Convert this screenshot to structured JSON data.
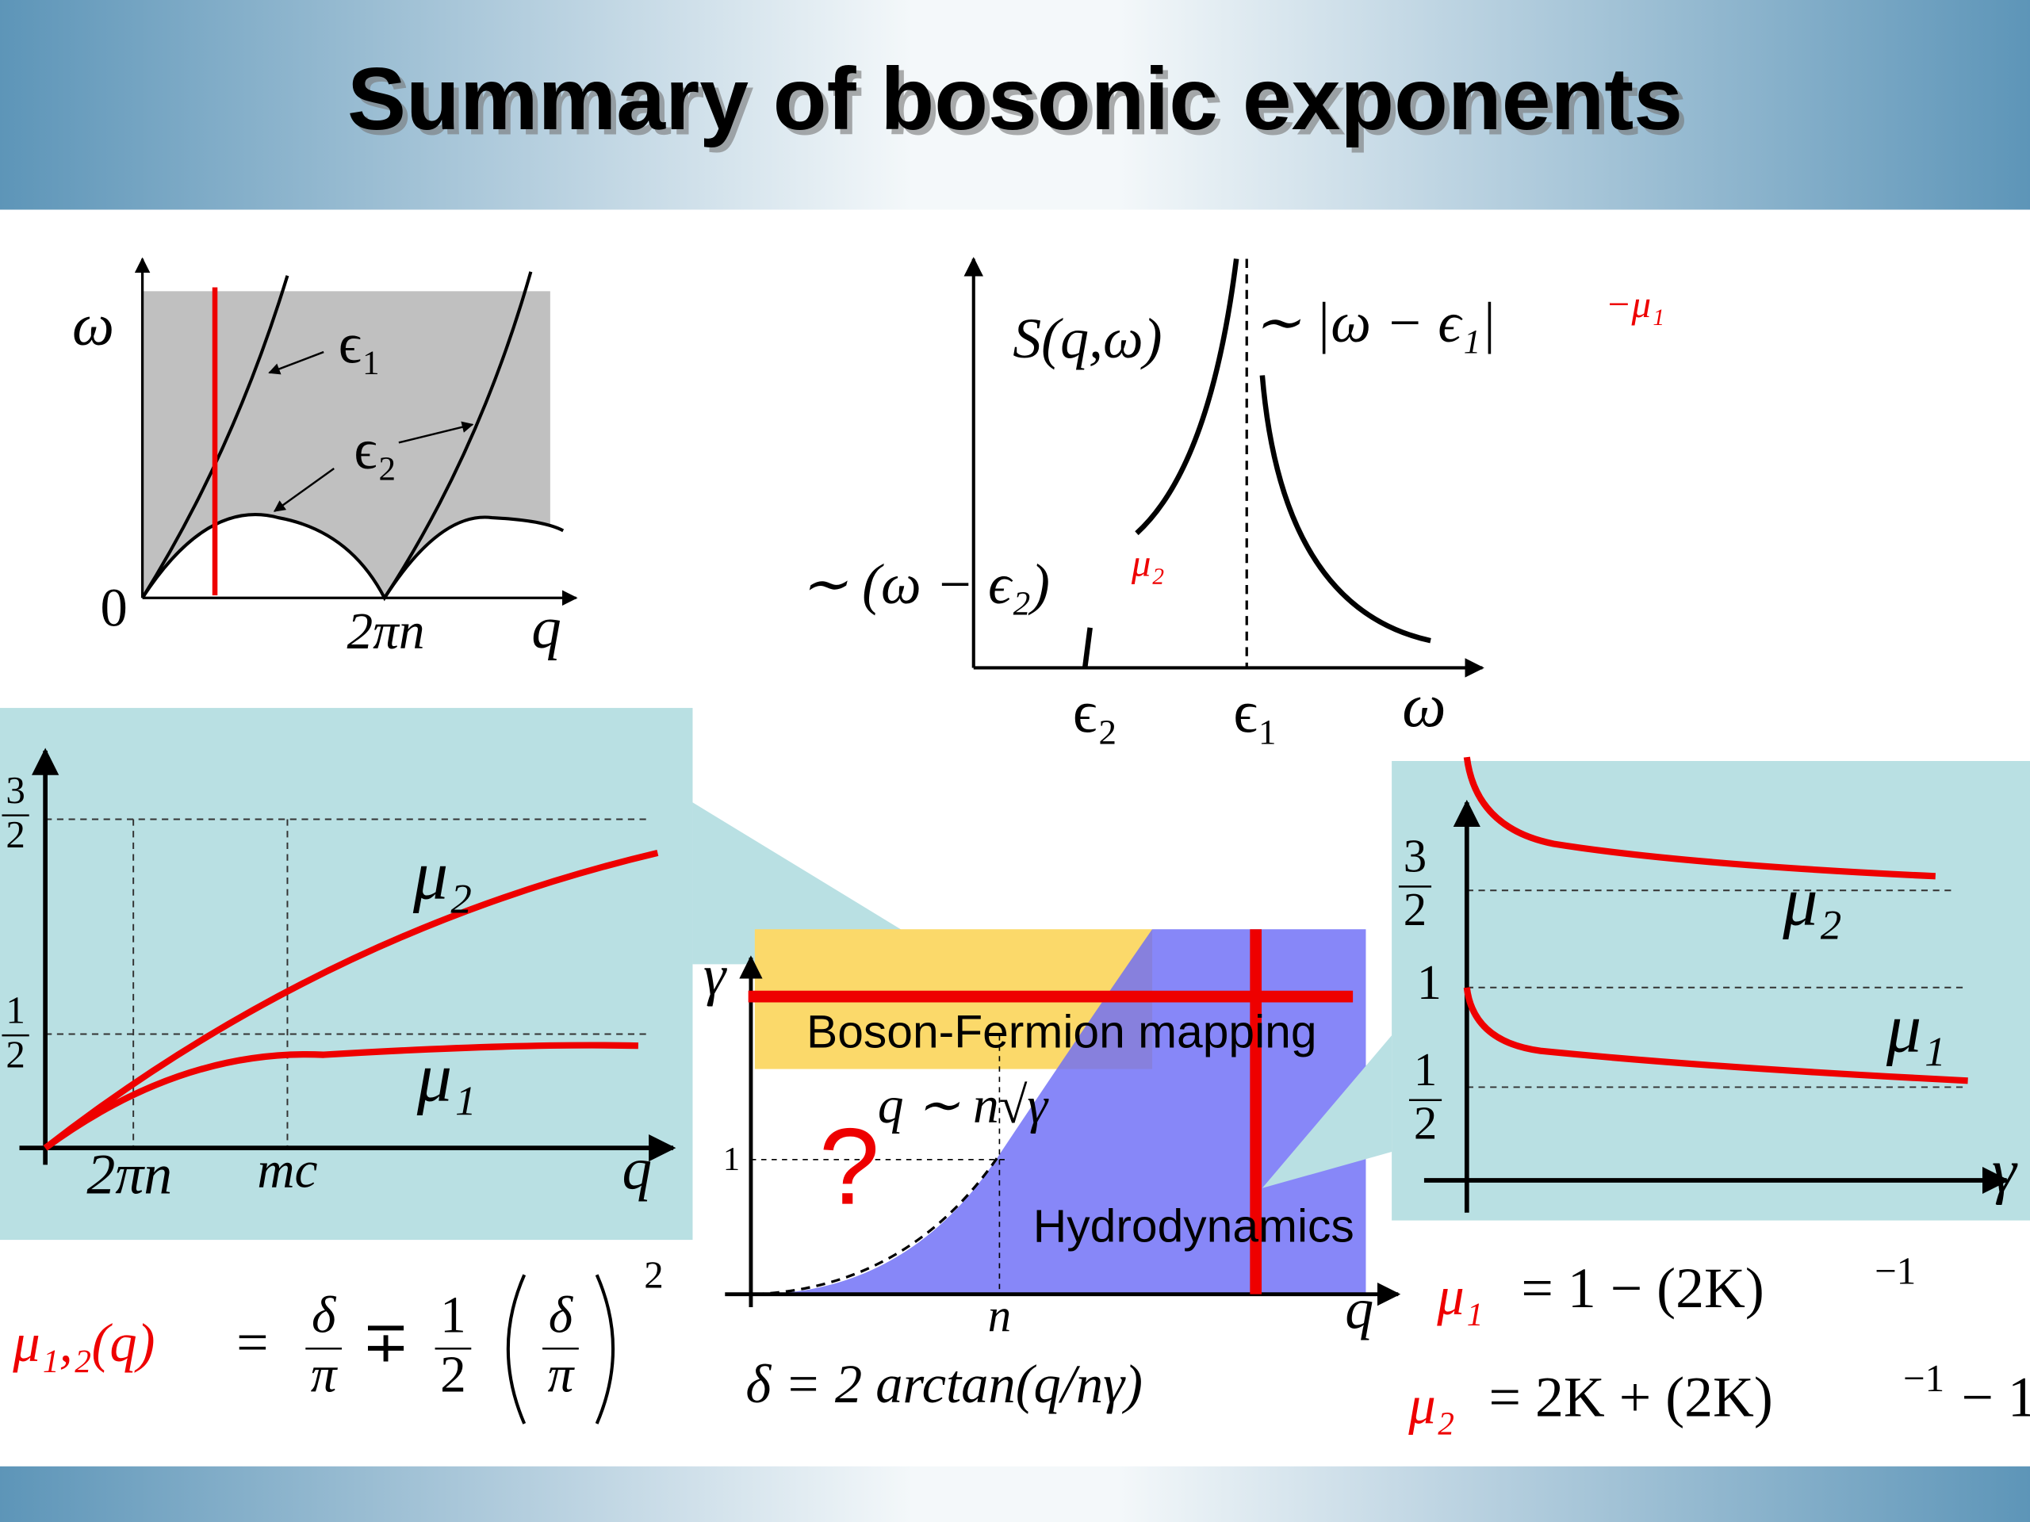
{
  "title": "Summary of bosonic exponents",
  "dispersion": {
    "y_label": "ω",
    "x_label": "q",
    "origin": "0",
    "x_tick": "2πn",
    "epsilon1": "ϵ₁",
    "epsilon2": "ϵ₂"
  },
  "structure_factor": {
    "y_label": "S(q,ω)",
    "x_label": "ω",
    "x_ticks": [
      "ϵ₂",
      "ϵ₁"
    ],
    "upper_law": "∼ |ω − ϵ₁|",
    "upper_exponent": "−μ₁",
    "lower_law": "∼ (ω − ϵ₂)",
    "lower_exponent": "μ₂"
  },
  "exponents_vs_q": {
    "y_ticks": [
      {
        "num": "3",
        "den": "2"
      },
      {
        "num": "1",
        "den": "2"
      }
    ],
    "x_ticks": [
      "2πn",
      "mc"
    ],
    "x_label": "q",
    "curves": [
      "μ₂",
      "μ₁"
    ],
    "formula": {
      "lhs": "μ₁,₂(q)",
      "equals": "=",
      "frac1": {
        "num": "δ",
        "den": "π"
      },
      "op": "∓",
      "frac2": {
        "num": "1",
        "den": "2"
      },
      "frac3": {
        "num": "δ",
        "den": "π"
      },
      "power": "2"
    }
  },
  "phase_diagram": {
    "y_label": "γ",
    "y_tick": "1",
    "x_tick": "n",
    "x_label": "q",
    "upper_region": "Boson-Fermion mapping",
    "lower_region": "Hydrodynamics",
    "crossover": "q ∼ n√γ",
    "unknown": "?",
    "formula": "δ = 2 arctan(q/nγ)"
  },
  "exponents_vs_gamma": {
    "y_ticks": [
      {
        "num": "3",
        "den": "2"
      },
      "1",
      {
        "num": "1",
        "den": "2"
      }
    ],
    "x_label": "γ",
    "curves": [
      "μ₂",
      "μ₁"
    ],
    "formula1": {
      "lhs": "μ₁",
      "rhs": "= 1 − (2K)",
      "exponent": "−1"
    },
    "formula2": {
      "lhs": "μ₂",
      "rhs": "= 2K + (2K)",
      "exponent": "−1",
      "tail": "− 1"
    }
  }
}
